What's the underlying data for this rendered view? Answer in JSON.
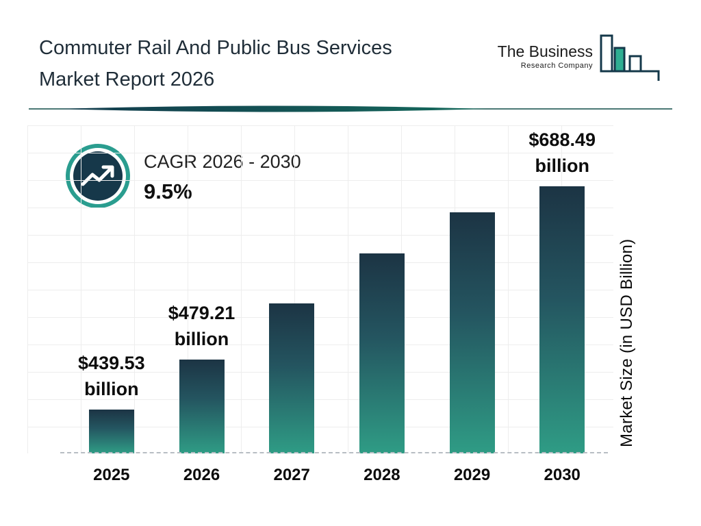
{
  "header": {
    "title_line1": "Commuter Rail And Public Bus Services",
    "title_line2": "Market Report 2026"
  },
  "logo": {
    "name_line1": "The Business",
    "name_line2": "Research Company"
  },
  "cagr": {
    "label": "CAGR 2026 - 2030",
    "value": "9.5%"
  },
  "chart_data": {
    "type": "bar",
    "title": "Commuter Rail And Public Bus Services Market Report 2026",
    "categories": [
      "2025",
      "2026",
      "2027",
      "2028",
      "2029",
      "2030"
    ],
    "values": [
      439.53,
      479.21,
      524.7,
      574.6,
      629.2,
      688.49
    ],
    "bar_labels": [
      {
        "amount": "$439.53",
        "unit": "billion"
      },
      {
        "amount": "$479.21",
        "unit": "billion"
      },
      null,
      null,
      null,
      {
        "amount": "$688.49",
        "unit": "billion"
      }
    ],
    "xlabel": "",
    "ylabel": "Market Size (in USD Billion)",
    "grid": true,
    "legend_position": "none",
    "bar_height_fracs": [
      0.164,
      0.351,
      0.562,
      0.749,
      0.903,
      1.0
    ],
    "colors": {
      "bar_gradient_top": "#1c3444",
      "bar_gradient_bottom": "#2f9c85",
      "accent_teal": "#2a9d8f",
      "dark_navy": "#16384a"
    }
  }
}
